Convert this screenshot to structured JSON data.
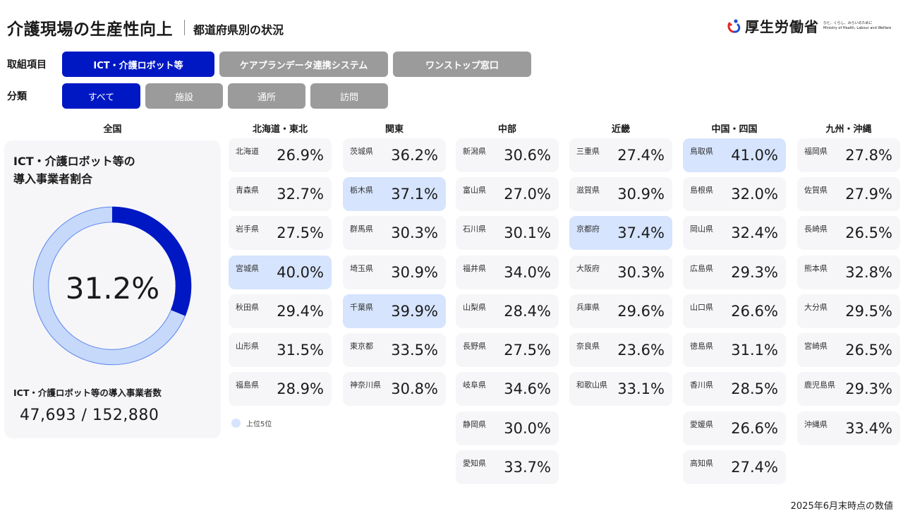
{
  "header": {
    "title": "介護現場の生産性向上",
    "subtitle": "都道府県別の状況"
  },
  "logo": {
    "name": "厚生労働省",
    "tagline": "ひと、くらし、みらいのために",
    "english": "Ministry of Health, Labour and Welfare"
  },
  "filters": {
    "item_label": "取組項目",
    "items": [
      {
        "label": "ICT・介護ロボット等",
        "active": true
      },
      {
        "label": "ケアプランデータ連携システム",
        "active": false
      },
      {
        "label": "ワンストップ窓口",
        "active": false
      }
    ],
    "category_label": "分類",
    "categories": [
      {
        "label": "すべて",
        "active": true
      },
      {
        "label": "施設",
        "active": false
      },
      {
        "label": "通所",
        "active": false
      },
      {
        "label": "訪問",
        "active": false
      }
    ]
  },
  "national": {
    "heading": "全国",
    "title_line1": "ICT・介護ロボット等の",
    "title_line2": "導入事業者割合",
    "percent": "31.2%",
    "percent_value": 31.2,
    "count_label": "ICT・介護ロボット等の導入事業者数",
    "count": "47,693 / 152,880",
    "colors": {
      "filled": "#0018c4",
      "remaining": "#c6d9fa",
      "ring_edge": "#5b84ef"
    }
  },
  "regions": [
    {
      "name": "北海道・東北",
      "prefs": [
        {
          "name": "北海道",
          "value": "26.9%"
        },
        {
          "name": "青森県",
          "value": "32.7%"
        },
        {
          "name": "岩手県",
          "value": "27.5%"
        },
        {
          "name": "宮城県",
          "value": "40.0%",
          "top5": true
        },
        {
          "name": "秋田県",
          "value": "29.4%"
        },
        {
          "name": "山形県",
          "value": "31.5%"
        },
        {
          "name": "福島県",
          "value": "28.9%"
        }
      ]
    },
    {
      "name": "関東",
      "prefs": [
        {
          "name": "茨城県",
          "value": "36.2%"
        },
        {
          "name": "栃木県",
          "value": "37.1%",
          "top5": true
        },
        {
          "name": "群馬県",
          "value": "30.3%"
        },
        {
          "name": "埼玉県",
          "value": "30.9%"
        },
        {
          "name": "千葉県",
          "value": "39.9%",
          "top5": true
        },
        {
          "name": "東京都",
          "value": "33.5%"
        },
        {
          "name": "神奈川県",
          "value": "30.8%"
        }
      ]
    },
    {
      "name": "中部",
      "prefs": [
        {
          "name": "新潟県",
          "value": "30.6%"
        },
        {
          "name": "富山県",
          "value": "27.0%"
        },
        {
          "name": "石川県",
          "value": "30.1%"
        },
        {
          "name": "福井県",
          "value": "34.0%"
        },
        {
          "name": "山梨県",
          "value": "28.4%"
        },
        {
          "name": "長野県",
          "value": "27.5%"
        },
        {
          "name": "岐阜県",
          "value": "34.6%"
        },
        {
          "name": "静岡県",
          "value": "30.0%"
        },
        {
          "name": "愛知県",
          "value": "33.7%"
        }
      ]
    },
    {
      "name": "近畿",
      "prefs": [
        {
          "name": "三重県",
          "value": "27.4%"
        },
        {
          "name": "滋賀県",
          "value": "30.9%"
        },
        {
          "name": "京都府",
          "value": "37.4%",
          "top5": true
        },
        {
          "name": "大阪府",
          "value": "30.3%"
        },
        {
          "name": "兵庫県",
          "value": "29.6%"
        },
        {
          "name": "奈良県",
          "value": "23.6%"
        },
        {
          "name": "和歌山県",
          "value": "33.1%"
        }
      ]
    },
    {
      "name": "中国・四国",
      "prefs": [
        {
          "name": "鳥取県",
          "value": "41.0%",
          "top5": true
        },
        {
          "name": "島根県",
          "value": "32.0%"
        },
        {
          "name": "岡山県",
          "value": "32.4%"
        },
        {
          "name": "広島県",
          "value": "29.3%"
        },
        {
          "name": "山口県",
          "value": "26.6%"
        },
        {
          "name": "徳島県",
          "value": "31.1%"
        },
        {
          "name": "香川県",
          "value": "28.5%"
        },
        {
          "name": "愛媛県",
          "value": "26.6%"
        },
        {
          "name": "高知県",
          "value": "27.4%"
        }
      ]
    },
    {
      "name": "九州・沖縄",
      "prefs": [
        {
          "name": "福岡県",
          "value": "27.8%"
        },
        {
          "name": "佐賀県",
          "value": "27.9%"
        },
        {
          "name": "長崎県",
          "value": "26.5%"
        },
        {
          "name": "熊本県",
          "value": "32.8%"
        },
        {
          "name": "大分県",
          "value": "29.5%"
        },
        {
          "name": "宮崎県",
          "value": "26.5%"
        },
        {
          "name": "鹿児島県",
          "value": "29.3%"
        },
        {
          "name": "沖縄県",
          "value": "33.4%"
        }
      ]
    }
  ],
  "legend": {
    "label": "上位5位",
    "color": "#d6e4fd"
  },
  "footnote": "2025年6月末時点の数値"
}
